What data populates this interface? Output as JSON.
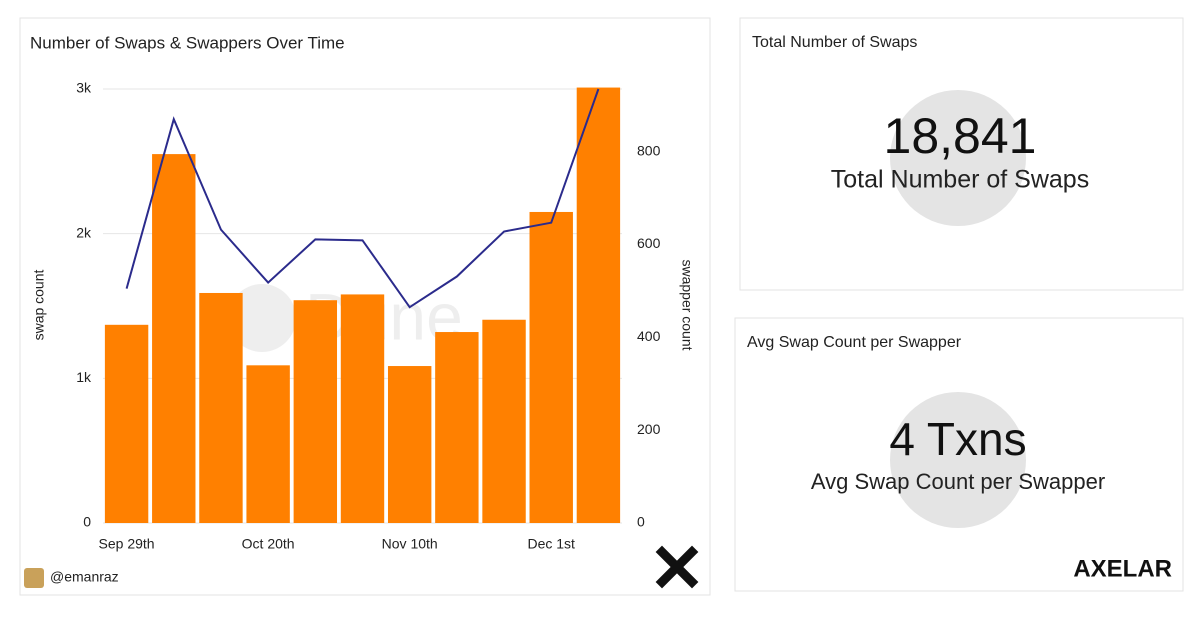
{
  "chart_data": {
    "type": "bar_line",
    "title": "Number of Swaps & Swappers Over Time",
    "categories": [
      "Sep 29th",
      null,
      null,
      "Oct 20th",
      null,
      null,
      "Nov 10th",
      null,
      null,
      "Dec 1st",
      null
    ],
    "series": [
      {
        "type": "bar",
        "color": "#ff8000",
        "values": [
          1370,
          2550,
          1590,
          1090,
          1540,
          1580,
          1085,
          1320,
          1405,
          2150,
          3010
        ]
      },
      {
        "type": "line",
        "axis": "y2",
        "color": "#2b2b8c",
        "values": [
          505,
          870,
          632,
          518,
          611,
          609,
          465,
          531,
          628,
          647,
          935
        ]
      }
    ],
    "y_label": "swap count",
    "y2_label": "swapper count",
    "ylim": [
      0,
      3000
    ],
    "yticks": [
      0,
      {
        "value": 1000,
        "label": "1k"
      },
      {
        "value": 2000,
        "label": "2k"
      },
      {
        "value": 3000,
        "label": "3k"
      }
    ],
    "y2lim": [
      0,
      935
    ],
    "y2ticks": [
      0,
      200,
      400,
      600,
      800
    ],
    "grid": true,
    "watermark": "Dune",
    "author": "@emanraz"
  },
  "counters": [
    {
      "title": "Total Number of Swaps",
      "value": "18,841",
      "subtitle": "Total Number of Swaps"
    },
    {
      "title": "Avg Swap Count per Swapper",
      "value": "4 Txns",
      "subtitle": "Avg Swap Count per Swapper"
    }
  ],
  "brand": "AXELAR"
}
